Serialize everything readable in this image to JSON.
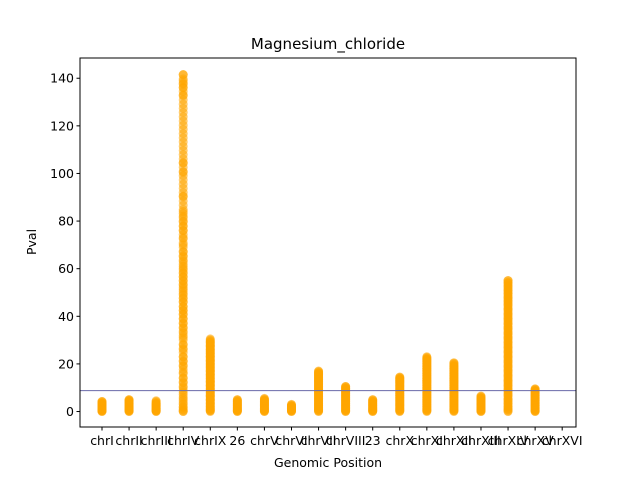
{
  "chart_data": {
    "type": "scatter",
    "title": "Magnesium_chloride",
    "xlabel": "Genomic Position",
    "ylabel": "Pval",
    "categories": [
      "chrI",
      "chrII",
      "chrIII",
      "chrIV",
      "chrIX",
      "26",
      "chrV",
      "chrVI",
      "chrVII",
      "chrVIII",
      "23",
      "chrX",
      "chrXI",
      "chrXII",
      "chrXIII",
      "chrXIV",
      "chrXV",
      "chrXVI"
    ],
    "ylim": [
      -6.5,
      148.5
    ],
    "yticks": [
      0,
      20,
      40,
      60,
      80,
      100,
      120,
      140
    ],
    "threshold": 8.8,
    "grid": false,
    "legend": "none",
    "colors": {
      "points": "#ffa500",
      "threshold_line": "#6a6aa8",
      "axes": "#000000"
    },
    "series": [
      {
        "category": "chrI",
        "max": 4.2,
        "points": [
          0.1,
          0.3,
          0.5,
          0.8,
          1.2,
          1.6,
          2.1,
          2.6,
          3.1,
          3.6,
          4.2
        ]
      },
      {
        "category": "chrII",
        "max": 5.0,
        "points": [
          0.1,
          0.4,
          0.7,
          1.1,
          1.6,
          2.2,
          2.8,
          3.4,
          4.0,
          4.5,
          5.0
        ]
      },
      {
        "category": "chrIII",
        "max": 4.5,
        "points": [
          0.1,
          0.3,
          0.6,
          1.0,
          1.4,
          1.9,
          2.4,
          2.9,
          3.4,
          4.5
        ]
      },
      {
        "category": "chrIV",
        "max": 141.5,
        "points": [
          0.1,
          0.5,
          1.0,
          2.0,
          3.0,
          4.5,
          6.0,
          8.0,
          10.0,
          12.0,
          14.0,
          16.5,
          19.0,
          21.0,
          23.0,
          26.0,
          28.0,
          31.0,
          33.0,
          35.0,
          37.0,
          39.0,
          41.0,
          42.5,
          44.0,
          46.0,
          47.5,
          49.0,
          50.5,
          52.0,
          53.5,
          55.0,
          56.5,
          58.0,
          59.5,
          61.0,
          63.0,
          65.0,
          67.0,
          70.0,
          73.0,
          76.0,
          78.0,
          80.0,
          82.0,
          84.0,
          90.5,
          100.5,
          104.5,
          133.0,
          136.0,
          137.5,
          139.0,
          141.5
        ]
      },
      {
        "category": "chrIX",
        "max": 30.5,
        "points": [
          0.3,
          1.0,
          2.0,
          3.5,
          5.0,
          6.5,
          8.0,
          9.5,
          11.0,
          12.5,
          14.0,
          15.5,
          17.0,
          18.5,
          20.0,
          21.5,
          23.0,
          24.5,
          26.0,
          27.5,
          29.0,
          30.5
        ]
      },
      {
        "category": "26",
        "max": 5.0,
        "points": [
          0.1,
          0.4,
          0.8,
          1.3,
          1.8,
          2.4,
          3.0,
          3.6,
          4.2,
          5.0
        ]
      },
      {
        "category": "chrV",
        "max": 5.5,
        "points": [
          0.1,
          0.4,
          0.8,
          1.3,
          1.9,
          2.5,
          3.1,
          3.7,
          4.3,
          4.9,
          5.5
        ]
      },
      {
        "category": "chrVI",
        "max": 3.0,
        "points": [
          0.1,
          0.3,
          0.6,
          0.9,
          1.2,
          1.6,
          2.0,
          2.4,
          3.0
        ]
      },
      {
        "category": "chrVII",
        "max": 17.0,
        "points": [
          0.2,
          0.8,
          1.6,
          2.5,
          3.4,
          4.4,
          5.4,
          6.4,
          7.4,
          8.4,
          9.4,
          10.4,
          11.4,
          12.4,
          13.4,
          14.4,
          15.4,
          16.2,
          17.0
        ]
      },
      {
        "category": "chrVIII",
        "max": 10.5,
        "points": [
          0.1,
          0.5,
          1.1,
          1.8,
          2.6,
          3.4,
          4.2,
          5.0,
          5.8,
          6.6,
          7.4,
          8.2,
          9.0,
          9.8,
          10.5
        ]
      },
      {
        "category": "23",
        "max": 5.0,
        "points": [
          0.1,
          0.4,
          0.8,
          1.3,
          1.8,
          2.4,
          3.0,
          3.6,
          4.2,
          5.0
        ]
      },
      {
        "category": "chrX",
        "max": 14.5,
        "points": [
          0.2,
          0.8,
          1.5,
          2.3,
          3.1,
          4.0,
          4.9,
          5.8,
          6.7,
          7.6,
          8.5,
          9.4,
          10.3,
          11.2,
          12.1,
          13.0,
          13.8,
          14.5
        ]
      },
      {
        "category": "chrXI",
        "max": 23.0,
        "points": [
          0.3,
          1.0,
          2.0,
          3.0,
          4.0,
          5.0,
          6.0,
          7.0,
          8.0,
          9.0,
          10.0,
          11.0,
          12.0,
          13.0,
          14.0,
          15.0,
          16.0,
          17.0,
          18.0,
          19.0,
          20.0,
          21.0,
          22.0,
          23.0
        ]
      },
      {
        "category": "chrXII",
        "max": 20.5,
        "points": [
          0.3,
          1.0,
          2.0,
          3.0,
          4.0,
          5.0,
          6.0,
          7.0,
          8.0,
          9.0,
          10.0,
          11.0,
          12.0,
          13.0,
          14.0,
          15.0,
          16.0,
          17.0,
          18.0,
          19.0,
          20.5
        ]
      },
      {
        "category": "chrXIII",
        "max": 6.5,
        "points": [
          0.1,
          0.5,
          1.0,
          1.6,
          2.2,
          2.9,
          3.6,
          4.3,
          5.0,
          5.7,
          6.5
        ]
      },
      {
        "category": "chrXIV",
        "max": 55.0,
        "points": [
          0.2,
          1.0,
          2.0,
          3.5,
          5.0,
          7.0,
          9.0,
          11.0,
          13.0,
          15.0,
          17.0,
          19.0,
          21.0,
          23.0,
          25.0,
          27.0,
          29.0,
          31.0,
          33.0,
          35.0,
          37.0,
          39.0,
          41.0,
          43.0,
          45.0,
          46.5,
          48.0,
          49.5,
          51.0,
          52.5,
          54.0,
          55.0
        ]
      },
      {
        "category": "chrXV",
        "max": 9.5,
        "points": [
          0.1,
          0.5,
          1.1,
          1.8,
          2.5,
          3.2,
          3.9,
          4.6,
          5.3,
          6.0,
          6.7,
          7.4,
          8.1,
          8.8,
          9.5
        ]
      }
    ]
  }
}
